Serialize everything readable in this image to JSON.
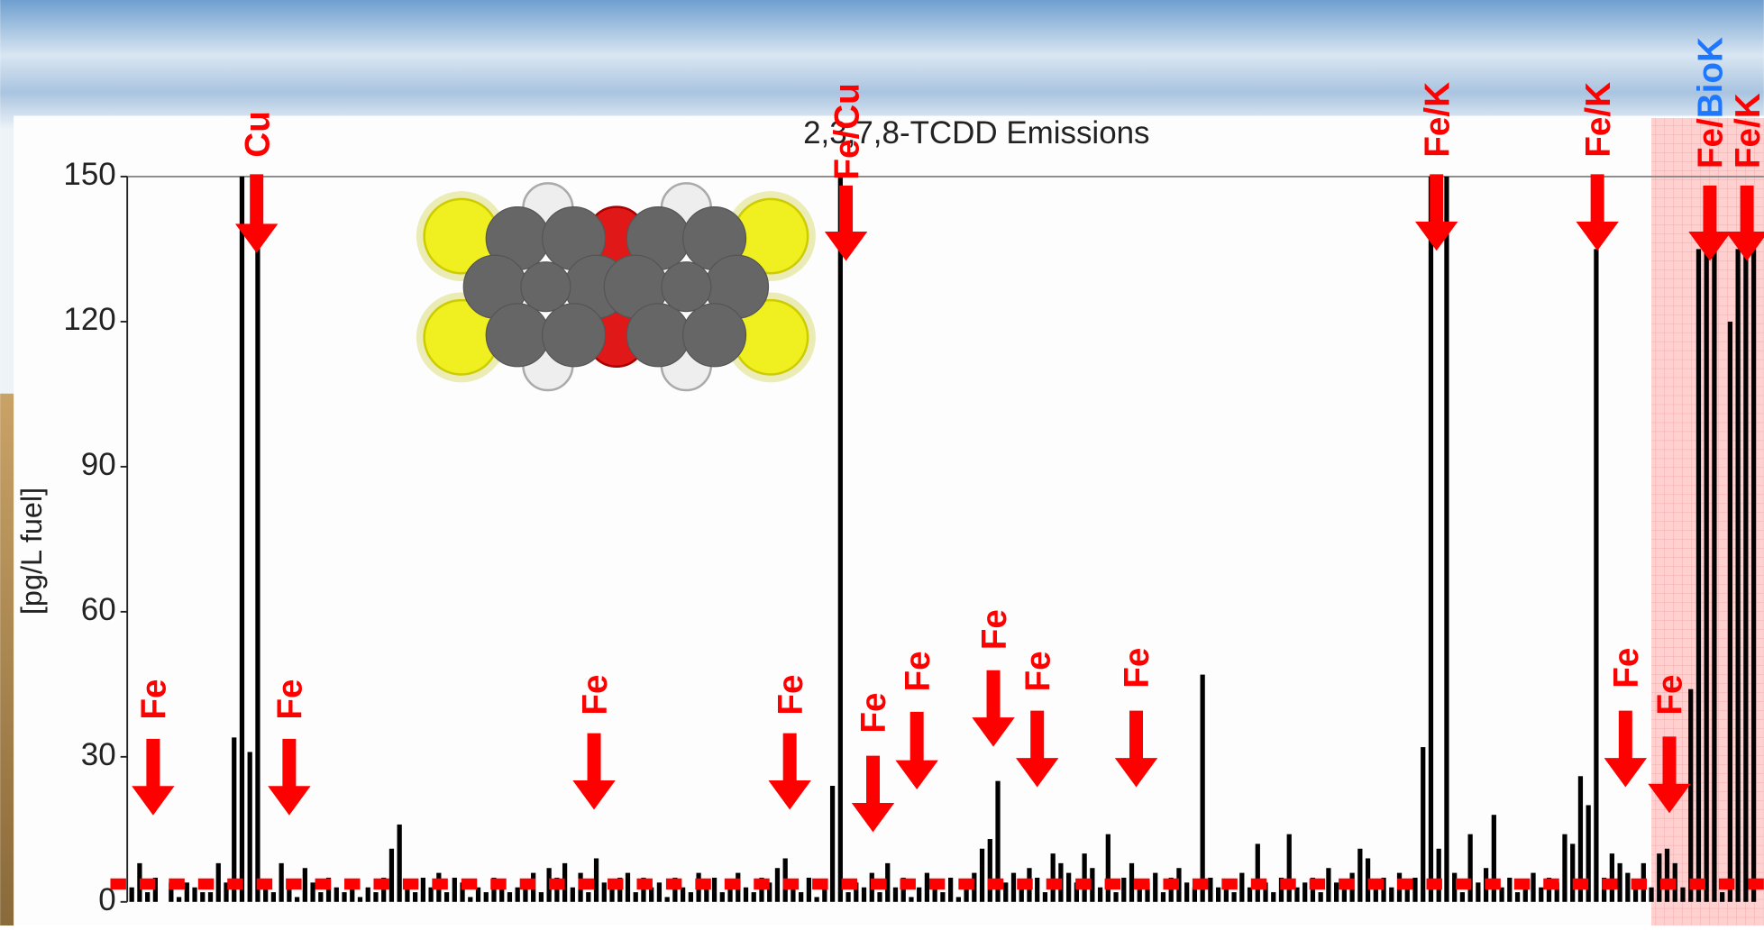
{
  "chart_data": {
    "type": "bar",
    "title": "2,3,7,8-TCDD Emissions",
    "y_label": "[pg/L fuel]",
    "color": "#000000",
    "reference_line": 3.7,
    "reference_color": "#ff0000",
    "ylim": [
      0,
      150
    ],
    "yticks": [
      0,
      30,
      60,
      90,
      120,
      150
    ],
    "values": [
      3,
      8,
      2,
      5,
      0,
      4,
      1,
      4,
      3,
      2,
      2,
      8,
      4,
      34,
      150,
      31,
      150,
      3,
      2,
      8,
      3,
      1,
      7,
      4,
      2,
      5,
      3,
      2,
      4,
      1,
      3,
      2,
      5,
      11,
      16,
      4,
      2,
      5,
      3,
      6,
      2,
      5,
      4,
      1,
      3,
      2,
      5,
      4,
      2,
      3,
      4,
      6,
      2,
      7,
      5,
      8,
      3,
      6,
      2,
      9,
      4,
      3,
      5,
      6,
      2,
      5,
      3,
      4,
      1,
      5,
      3,
      2,
      6,
      4,
      5,
      2,
      4,
      6,
      3,
      2,
      5,
      4,
      7,
      9,
      3,
      2,
      5,
      1,
      3,
      24,
      150,
      2,
      4,
      3,
      6,
      2,
      8,
      3,
      5,
      1,
      3,
      6,
      4,
      2,
      5,
      1,
      3,
      6,
      11,
      13,
      25,
      4,
      6,
      3,
      7,
      5,
      2,
      10,
      8,
      6,
      4,
      10,
      7,
      3,
      14,
      2,
      5,
      8,
      3,
      4,
      6,
      2,
      5,
      7,
      4,
      3,
      47,
      5,
      3,
      4,
      2,
      6,
      3,
      12,
      4,
      2,
      5,
      14,
      3,
      4,
      5,
      2,
      7,
      4,
      3,
      6,
      11,
      9,
      4,
      5,
      3,
      6,
      4,
      5,
      32,
      150,
      11,
      150,
      6,
      2,
      14,
      4,
      7,
      18,
      3,
      5,
      2,
      4,
      6,
      3,
      5,
      4,
      14,
      12,
      26,
      20,
      135,
      5,
      10,
      8,
      6,
      4,
      8,
      3,
      10,
      11,
      8,
      3,
      44,
      135,
      135,
      135,
      2,
      120,
      135,
      135,
      135
    ],
    "annotation_color": "#ff0000",
    "annotations": [
      {
        "text": "Fe"
      },
      {
        "text": "Cu"
      },
      {
        "text": "Fe"
      },
      {
        "text": "Fe"
      },
      {
        "text": "Fe"
      },
      {
        "text": "Fe/Cu"
      },
      {
        "text": "Fe"
      },
      {
        "text": "Fe"
      },
      {
        "text": "Fe"
      },
      {
        "text": "Fe"
      },
      {
        "text": "Fe"
      },
      {
        "text": "Fe/K"
      },
      {
        "text": "Fe/K"
      },
      {
        "text": "Fe"
      },
      {
        "text": "Fe"
      },
      {
        "parts": [
          {
            "text": "Fe/",
            "color": "#ff0000"
          },
          {
            "text": "BioK",
            "color": "#1e78ff"
          }
        ]
      },
      {
        "text": "Fe/K"
      }
    ]
  }
}
